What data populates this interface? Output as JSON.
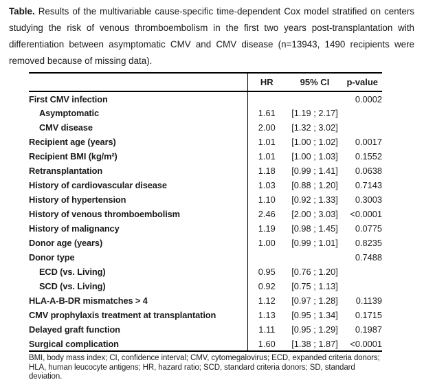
{
  "caption": {
    "label": "Table.",
    "text": " Results of the multivariable cause-specific time-dependent Cox model stratified on centers studying the risk of venous thromboembolism in the first two years post-transplantation with differentiation between asymptomatic CMV and CMV disease (n=13943, 1490 recipients were removed because of missing data)."
  },
  "table": {
    "columns": [
      "HR",
      "95% CI",
      "p-value"
    ],
    "rows": [
      {
        "label": "First CMV infection",
        "indent": false,
        "hr": "",
        "ci": "",
        "p": "0.0002"
      },
      {
        "label": "Asymptomatic",
        "indent": true,
        "hr": "1.61",
        "ci": "[1.19 ; 2.17]",
        "p": ""
      },
      {
        "label": "CMV disease",
        "indent": true,
        "hr": "2.00",
        "ci": "[1.32 ; 3.02]",
        "p": ""
      },
      {
        "label": "Recipient age (years)",
        "indent": false,
        "hr": "1.01",
        "ci": "[1.00 ; 1.02]",
        "p": "0.0017"
      },
      {
        "label": "Recipient BMI (kg/m²)",
        "indent": false,
        "hr": "1.01",
        "ci": "[1.00 ; 1.03]",
        "p": "0.1552"
      },
      {
        "label": "Retransplantation",
        "indent": false,
        "hr": "1.18",
        "ci": "[0.99 ; 1.41]",
        "p": "0.0638"
      },
      {
        "label": "History of cardiovascular disease",
        "indent": false,
        "hr": "1.03",
        "ci": "[0.88 ; 1.20]",
        "p": "0.7143"
      },
      {
        "label": "History of hypertension",
        "indent": false,
        "hr": "1.10",
        "ci": "[0.92 ; 1.33]",
        "p": "0.3003"
      },
      {
        "label": "History of venous thromboembolism",
        "indent": false,
        "hr": "2.46",
        "ci": "[2.00 ; 3.03]",
        "p": "<0.0001"
      },
      {
        "label": "History of malignancy",
        "indent": false,
        "hr": "1.19",
        "ci": "[0.98 ; 1.45]",
        "p": "0.0775"
      },
      {
        "label": "Donor age (years)",
        "indent": false,
        "hr": "1.00",
        "ci": "[0.99 ; 1.01]",
        "p": "0.8235"
      },
      {
        "label": "Donor type",
        "indent": false,
        "hr": "",
        "ci": "",
        "p": "0.7488"
      },
      {
        "label": "ECD (vs. Living)",
        "indent": true,
        "hr": "0.95",
        "ci": "[0.76 ; 1.20]",
        "p": ""
      },
      {
        "label": "SCD (vs. Living)",
        "indent": true,
        "hr": "0.92",
        "ci": "[0.75 ; 1.13]",
        "p": ""
      },
      {
        "label": "HLA-A-B-DR mismatches > 4",
        "indent": false,
        "hr": "1.12",
        "ci": "[0.97 ; 1.28]",
        "p": "0.1139"
      },
      {
        "label": "CMV prophylaxis treatment at transplantation",
        "indent": false,
        "hr": "1.13",
        "ci": "[0.95 ; 1.34]",
        "p": "0.1715"
      },
      {
        "label": "Delayed graft function",
        "indent": false,
        "hr": "1.11",
        "ci": "[0.95 ; 1.29]",
        "p": "0.1987"
      },
      {
        "label": "Surgical complication",
        "indent": false,
        "hr": "1.60",
        "ci": "[1.38 ; 1.87]",
        "p": "<0.0001"
      }
    ]
  },
  "footnote": "BMI, body mass index; CI, confidence interval; CMV, cytomegalovirus; ECD, expanded criteria donors; HLA, human leucocyte antigens; HR, hazard ratio; SCD, standard criteria donors; SD, standard deviation.",
  "colors": {
    "text": "#1a1a1a",
    "rule": "#000000",
    "background": "#ffffff"
  }
}
